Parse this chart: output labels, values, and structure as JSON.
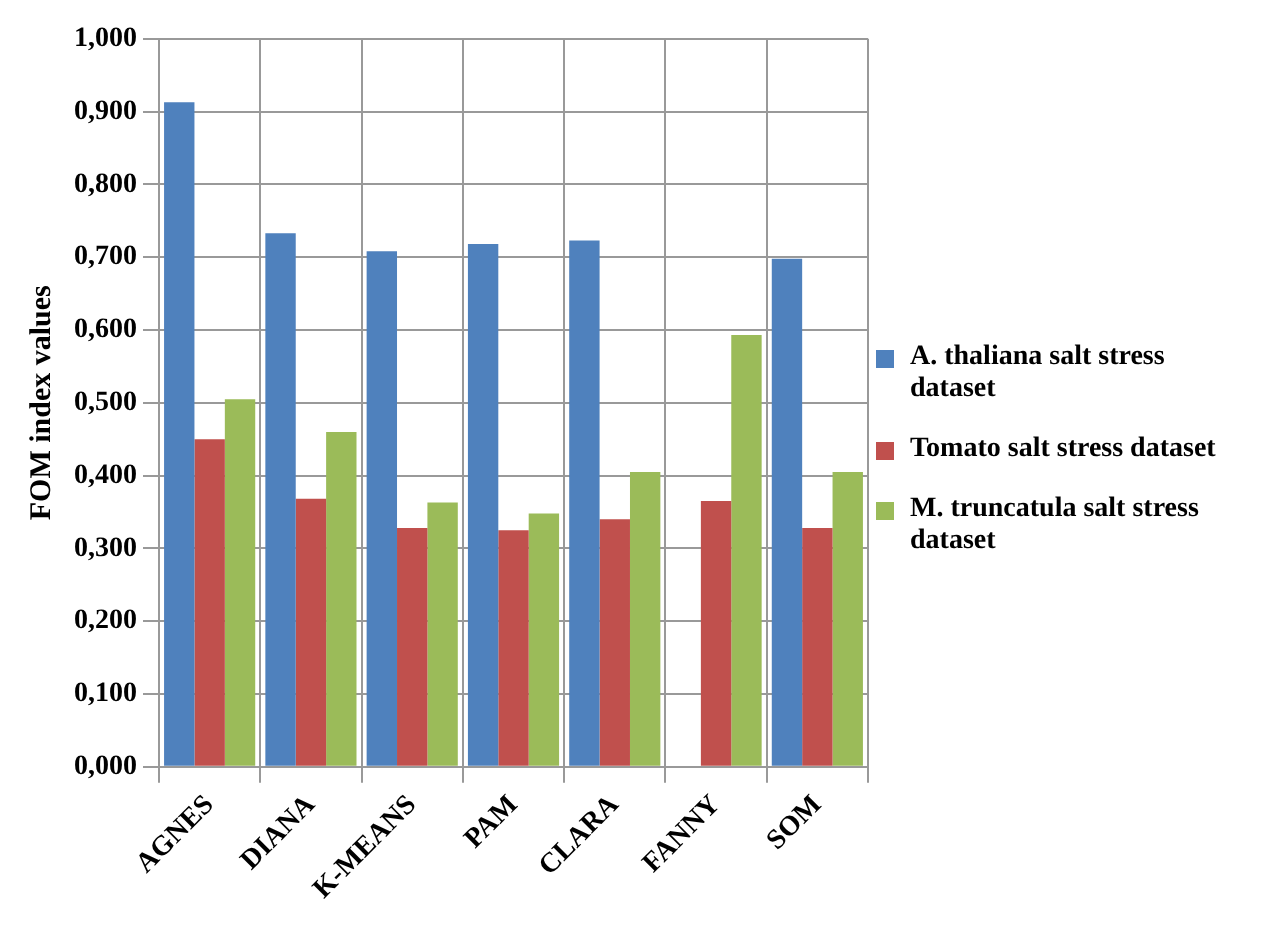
{
  "chart_data": {
    "type": "bar",
    "ylabel": "FOM index values",
    "categories": [
      "AGNES",
      "DIANA",
      "K-MEANS",
      "PAM",
      "CLARA",
      "FANNY",
      "SOM"
    ],
    "series": [
      {
        "name": "A. thaliana salt stress dataset",
        "color": "#4f81bd",
        "values": [
          0.913,
          0.733,
          0.708,
          0.718,
          0.723,
          null,
          0.698
        ]
      },
      {
        "name": "Tomato salt stress dataset",
        "color": "#c0504d",
        "values": [
          0.45,
          0.368,
          0.328,
          0.325,
          0.34,
          0.365,
          0.328
        ]
      },
      {
        "name": "M. truncatula salt stress dataset",
        "color": "#9bbb59",
        "values": [
          0.505,
          0.46,
          0.363,
          0.348,
          0.405,
          0.593,
          0.405
        ]
      }
    ],
    "ylim": [
      0,
      1
    ],
    "yticks": [
      {
        "value": 0,
        "label": "0,000"
      },
      {
        "value": 0.1,
        "label": "0,100"
      },
      {
        "value": 0.2,
        "label": "0,200"
      },
      {
        "value": 0.3,
        "label": "0,300"
      },
      {
        "value": 0.4,
        "label": "0,400"
      },
      {
        "value": 0.5,
        "label": "0,500"
      },
      {
        "value": 0.6,
        "label": "0,600"
      },
      {
        "value": 0.7,
        "label": "0,700"
      },
      {
        "value": 0.8,
        "label": "0,800"
      },
      {
        "value": 0.9,
        "label": "0,900"
      },
      {
        "value": 1,
        "label": "1,000"
      }
    ],
    "grid": true,
    "legend": "right"
  }
}
